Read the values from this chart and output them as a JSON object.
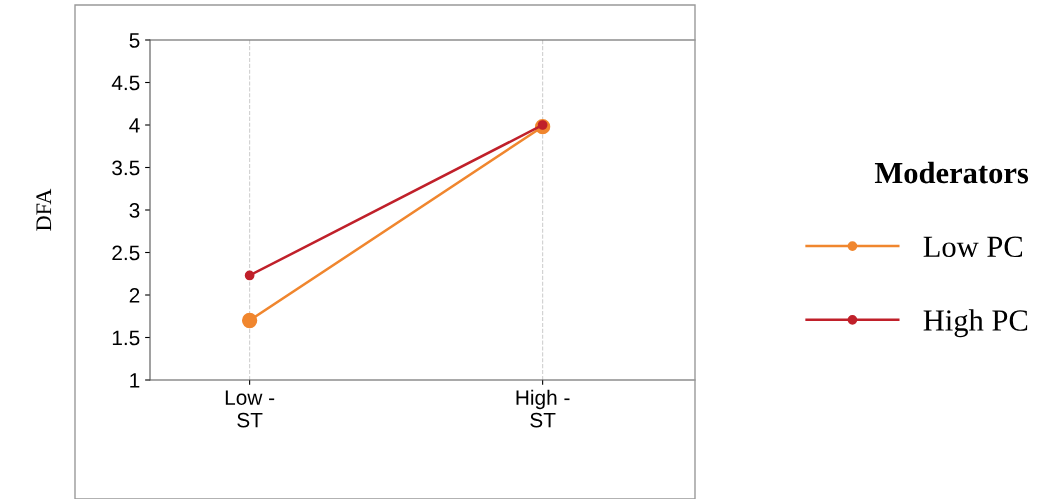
{
  "chart_data": {
    "type": "line",
    "ylabel": "DFA",
    "legend_title": "Moderators",
    "categories": [
      "Low -\nST",
      "High -\nST"
    ],
    "series": [
      {
        "name": "Low PC",
        "color": "#f0862e",
        "values": [
          1.7,
          3.98
        ]
      },
      {
        "name": "High PC",
        "color": "#c0202a",
        "values": [
          2.23,
          4.0
        ]
      }
    ],
    "ylim": [
      1,
      5
    ],
    "yticks": [
      1,
      1.5,
      2,
      2.5,
      3,
      3.5,
      4,
      4.5,
      5
    ],
    "grid": "x",
    "legend": "right",
    "marker": "circle",
    "line_style": "solid"
  }
}
